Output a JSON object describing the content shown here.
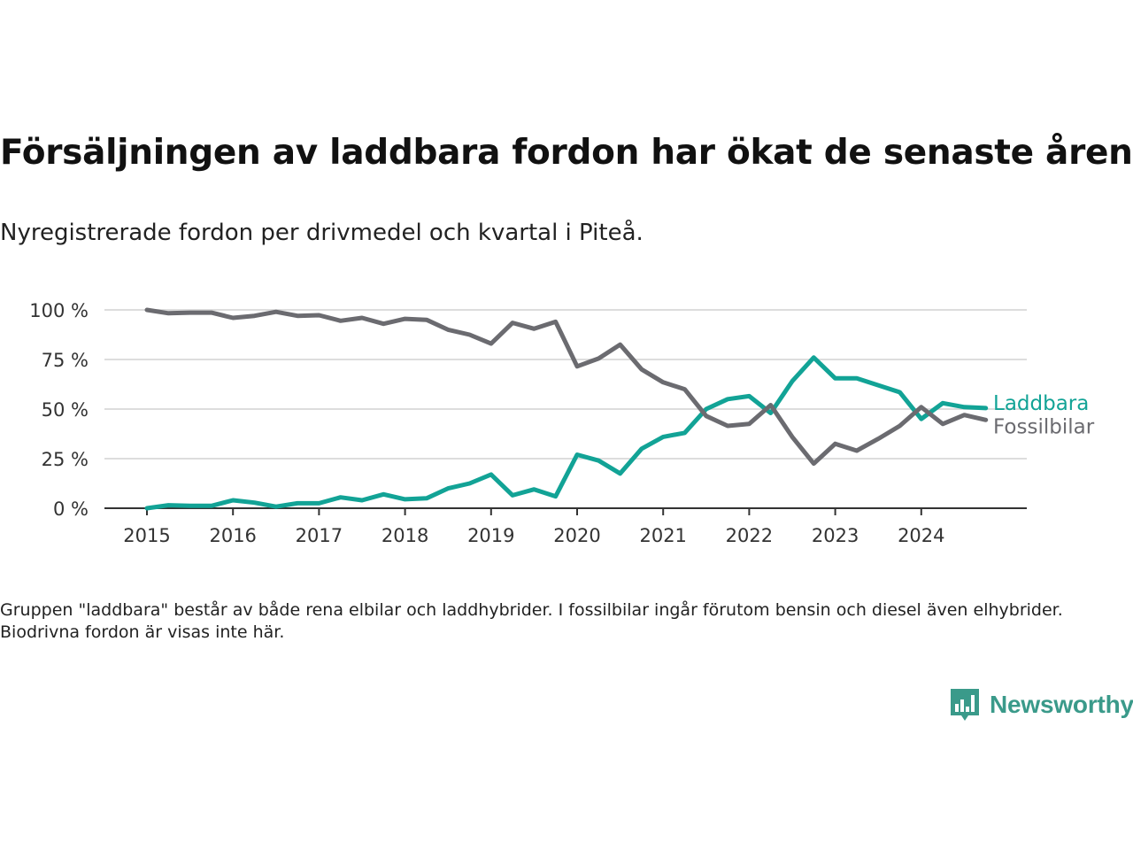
{
  "header": {
    "title": "Försäljningen av laddbara fordon har ökat de senaste åren",
    "subtitle": "Nyregistrerade fordon per drivmedel och kvartal i Piteå."
  },
  "footer": {
    "note": "Gruppen \"laddbara\" består av både rena elbilar och laddhybrider. I fossilbilar ingår förutom bensin och diesel även elhybrider. Biodrivna fordon är visas inte här.",
    "brand": "Newsworthy"
  },
  "colors": {
    "laddbara": "#12a396",
    "fossil": "#6b6b70",
    "grid": "#dddddd",
    "axis": "#333333"
  },
  "chart_data": {
    "type": "line",
    "title": "Försäljningen av laddbara fordon har ökat de senaste åren",
    "subtitle": "Nyregistrerade fordon per drivmedel och kvartal i Piteå.",
    "x": [
      "2015-Q1",
      "2015-Q2",
      "2015-Q3",
      "2015-Q4",
      "2016-Q1",
      "2016-Q2",
      "2016-Q3",
      "2016-Q4",
      "2017-Q1",
      "2017-Q2",
      "2017-Q3",
      "2017-Q4",
      "2018-Q1",
      "2018-Q2",
      "2018-Q3",
      "2018-Q4",
      "2019-Q1",
      "2019-Q2",
      "2019-Q3",
      "2019-Q4",
      "2020-Q1",
      "2020-Q2",
      "2020-Q3",
      "2020-Q4",
      "2021-Q1",
      "2021-Q2",
      "2021-Q3",
      "2021-Q4",
      "2022-Q1",
      "2022-Q2",
      "2022-Q3",
      "2022-Q4",
      "2023-Q1",
      "2023-Q2",
      "2023-Q3",
      "2023-Q4",
      "2024-Q1",
      "2024-Q2",
      "2024-Q3",
      "2024-Q4"
    ],
    "xticks": [
      "2015",
      "2016",
      "2017",
      "2018",
      "2019",
      "2020",
      "2021",
      "2022",
      "2023",
      "2024"
    ],
    "yticks": [
      "0 %",
      "25 %",
      "50 %",
      "75 %",
      "100 %"
    ],
    "ylim": [
      0,
      100
    ],
    "grid": true,
    "legend": "direct labels at line ends",
    "series": [
      {
        "name": "Laddbara",
        "color": "#12a396",
        "values": [
          0,
          1.5,
          1.2,
          1.2,
          4,
          2.8,
          0.8,
          2.5,
          2.5,
          5.5,
          4,
          7,
          4.5,
          5,
          10,
          12.5,
          17,
          6.5,
          9.5,
          6,
          27,
          24,
          17.5,
          30,
          36,
          38,
          50,
          55,
          56.5,
          48,
          64,
          76,
          65.5,
          65.5,
          62,
          58.5,
          45,
          53,
          51,
          50.5
        ]
      },
      {
        "name": "Fossilbilar",
        "color": "#6b6b70",
        "values": [
          100,
          98.3,
          98.6,
          98.6,
          96,
          97,
          99,
          97,
          97.3,
          94.5,
          96,
          93,
          95.5,
          95,
          90,
          87.5,
          83,
          93.5,
          90.5,
          94,
          71.5,
          75.5,
          82.5,
          70,
          63.5,
          60,
          46.5,
          41.5,
          42.5,
          52,
          36,
          22.5,
          32.5,
          29,
          35,
          41.5,
          51,
          42.5,
          47,
          44.5
        ]
      }
    ]
  }
}
